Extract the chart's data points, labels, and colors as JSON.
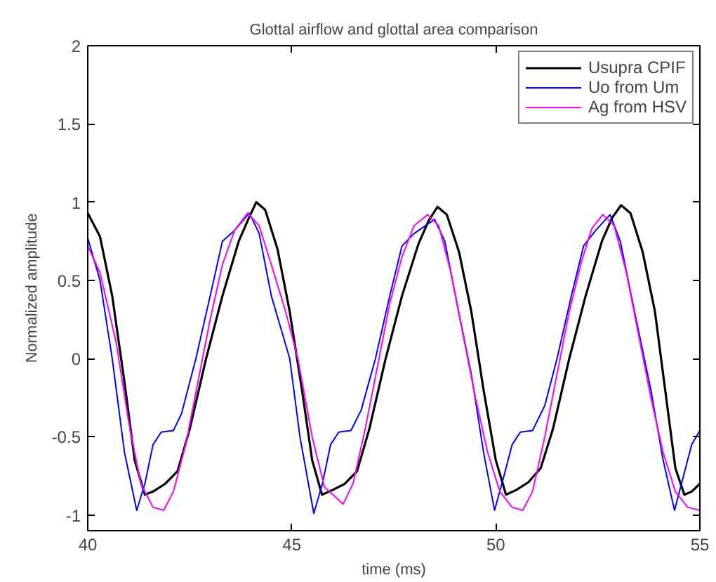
{
  "chart_data": {
    "type": "line",
    "title": "Glottal airflow and glottal area comparison",
    "xlabel": "time (ms)",
    "ylabel": "Normalized amplitude",
    "xlim": [
      40,
      55
    ],
    "xticks": [
      40,
      45,
      50,
      55
    ],
    "ylim": [
      -1.1,
      2
    ],
    "yticks": [
      -1,
      -0.5,
      0,
      0.5,
      1,
      1.5,
      2
    ],
    "grid": false,
    "legend": "top right",
    "line_style": "solid",
    "series": [
      {
        "name": "Usupra CPIF",
        "color": "#000000",
        "x": [
          40.0,
          40.3,
          40.6,
          40.9,
          41.15,
          41.4,
          41.6,
          41.9,
          42.2,
          42.5,
          42.9,
          43.3,
          43.7,
          43.95,
          44.13,
          44.35,
          44.65,
          44.95,
          45.25,
          45.5,
          45.74,
          46.0,
          46.3,
          46.6,
          46.9,
          47.3,
          47.7,
          48.1,
          48.35,
          48.57,
          48.8,
          49.1,
          49.4,
          49.7,
          50.0,
          50.25,
          50.5,
          50.8,
          51.1,
          51.4,
          51.8,
          52.2,
          52.6,
          52.85,
          53.07,
          53.3,
          53.6,
          53.9,
          54.15,
          54.4,
          54.62,
          54.8,
          55.0
        ],
        "values": [
          0.93,
          0.78,
          0.4,
          -0.15,
          -0.65,
          -0.87,
          -0.85,
          -0.8,
          -0.72,
          -0.45,
          0.0,
          0.4,
          0.75,
          0.9,
          1.0,
          0.95,
          0.7,
          0.3,
          -0.2,
          -0.65,
          -0.87,
          -0.84,
          -0.8,
          -0.72,
          -0.45,
          0.0,
          0.4,
          0.73,
          0.88,
          0.97,
          0.92,
          0.68,
          0.3,
          -0.2,
          -0.65,
          -0.87,
          -0.84,
          -0.79,
          -0.7,
          -0.45,
          0.0,
          0.4,
          0.75,
          0.9,
          0.98,
          0.93,
          0.68,
          0.3,
          -0.2,
          -0.7,
          -0.87,
          -0.85,
          -0.8
        ]
      },
      {
        "name": "Uo from Um",
        "color": "#0000ff",
        "x": [
          40.0,
          40.3,
          40.6,
          40.9,
          41.2,
          41.4,
          41.6,
          41.8,
          42.1,
          42.3,
          42.65,
          43.0,
          43.3,
          43.6,
          43.96,
          44.2,
          44.5,
          44.95,
          45.2,
          45.54,
          45.75,
          45.95,
          46.15,
          46.45,
          46.7,
          47.05,
          47.4,
          47.7,
          48.0,
          48.5,
          48.75,
          49.05,
          49.4,
          49.7,
          49.97,
          50.2,
          50.4,
          50.6,
          50.9,
          51.2,
          51.5,
          51.85,
          52.15,
          52.45,
          52.8,
          53.05,
          53.4,
          53.8,
          54.1,
          54.38,
          54.6,
          54.8,
          55.0
        ],
        "values": [
          0.77,
          0.5,
          0.0,
          -0.6,
          -0.97,
          -0.8,
          -0.55,
          -0.47,
          -0.46,
          -0.35,
          0.0,
          0.4,
          0.75,
          0.82,
          0.93,
          0.8,
          0.4,
          0.0,
          -0.5,
          -0.99,
          -0.8,
          -0.55,
          -0.47,
          -0.46,
          -0.33,
          0.0,
          0.4,
          0.72,
          0.8,
          0.89,
          0.75,
          0.35,
          -0.1,
          -0.6,
          -0.97,
          -0.75,
          -0.55,
          -0.47,
          -0.46,
          -0.3,
          0.0,
          0.4,
          0.72,
          0.82,
          0.92,
          0.75,
          0.3,
          -0.2,
          -0.65,
          -0.97,
          -0.75,
          -0.55,
          -0.46
        ]
      },
      {
        "name": "Ag from HSV",
        "color": "#ff00ff",
        "x": [
          40.0,
          40.3,
          40.7,
          41.0,
          41.3,
          41.6,
          41.86,
          42.1,
          42.4,
          42.7,
          43.0,
          43.3,
          43.6,
          43.92,
          44.2,
          44.5,
          44.85,
          45.15,
          45.5,
          45.8,
          46.26,
          46.5,
          46.8,
          47.1,
          47.4,
          47.7,
          48.0,
          48.33,
          48.6,
          48.9,
          49.2,
          49.5,
          49.8,
          50.1,
          50.4,
          50.66,
          50.9,
          51.2,
          51.5,
          51.8,
          52.1,
          52.35,
          52.62,
          52.9,
          53.2,
          53.5,
          53.8,
          54.1,
          54.4,
          54.7,
          55.0
        ],
        "values": [
          0.72,
          0.55,
          0.1,
          -0.4,
          -0.8,
          -0.95,
          -0.97,
          -0.85,
          -0.55,
          -0.15,
          0.25,
          0.6,
          0.82,
          0.93,
          0.85,
          0.6,
          0.3,
          0.0,
          -0.5,
          -0.82,
          -0.93,
          -0.8,
          -0.45,
          -0.05,
          0.35,
          0.65,
          0.85,
          0.92,
          0.85,
          0.55,
          0.15,
          -0.25,
          -0.6,
          -0.85,
          -0.95,
          -0.97,
          -0.85,
          -0.5,
          -0.1,
          0.3,
          0.62,
          0.83,
          0.92,
          0.85,
          0.55,
          0.15,
          -0.25,
          -0.6,
          -0.85,
          -0.95,
          -0.97
        ]
      }
    ]
  }
}
